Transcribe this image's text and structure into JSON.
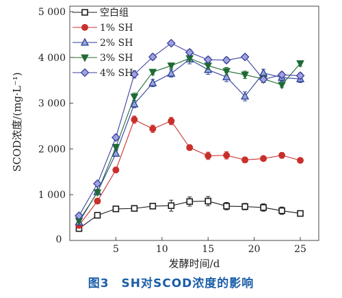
{
  "caption": "图3　SH对SCOD浓度的影响",
  "chart_data": {
    "type": "line",
    "xlabel": "发酵时间/d",
    "ylabel": "SCOD浓度/(mg·L⁻¹)",
    "xlim": [
      0,
      27
    ],
    "ylim": [
      0,
      5000
    ],
    "xticks": [
      5,
      10,
      15,
      20,
      25
    ],
    "x_tick_labels": [
      "5",
      "10",
      "15",
      "20",
      "25"
    ],
    "x_origin_label": "0",
    "yticks": [
      1000,
      2000,
      3000,
      4000,
      5000
    ],
    "y_tick_labels": [
      "1 000",
      "2 000",
      "3 000",
      "4 000",
      "5 000"
    ],
    "legend_position": "top-left",
    "x": [
      1,
      3,
      5,
      7,
      9,
      11,
      13,
      15,
      17,
      19,
      21,
      23,
      25
    ],
    "series": [
      {
        "name": "空白组",
        "color": "#1a1a1a",
        "marker": "square",
        "values": [
          260,
          550,
          690,
          700,
          750,
          760,
          850,
          860,
          750,
          740,
          720,
          650,
          590
        ],
        "errors": [
          50,
          40,
          40,
          40,
          50,
          120,
          100,
          100,
          80,
          70,
          80,
          80,
          40
        ]
      },
      {
        "name": "1% SH",
        "color": "#c8302c",
        "marker": "circle",
        "values": [
          330,
          860,
          1540,
          2640,
          2440,
          2610,
          2030,
          1850,
          1860,
          1760,
          1790,
          1860,
          1750
        ],
        "errors": [
          50,
          60,
          60,
          80,
          80,
          80,
          60,
          80,
          80,
          60,
          40,
          60,
          40
        ]
      },
      {
        "name": "2% SH",
        "color": "#2b3f97",
        "marker": "triangle-up",
        "values": [
          400,
          1060,
          1900,
          2980,
          3440,
          3650,
          3960,
          3730,
          3570,
          3150,
          3660,
          3560,
          3530
        ],
        "errors": [
          40,
          50,
          60,
          80,
          80,
          80,
          100,
          100,
          100,
          100,
          80,
          80,
          80
        ]
      },
      {
        "name": "3% SH",
        "color": "#1f6b33",
        "marker": "triangle-down",
        "values": [
          430,
          1050,
          2040,
          3140,
          3680,
          3820,
          3980,
          3820,
          3700,
          3620,
          3530,
          3400,
          3870
        ],
        "errors": [
          40,
          50,
          60,
          80,
          60,
          60,
          80,
          80,
          80,
          80,
          80,
          60,
          60
        ]
      },
      {
        "name": "4% SH",
        "color": "#3b3f9c",
        "marker": "diamond",
        "values": [
          540,
          1240,
          2250,
          3630,
          4010,
          4310,
          4110,
          3950,
          3940,
          4010,
          3520,
          3620,
          3600
        ],
        "errors": [
          40,
          50,
          60,
          80,
          60,
          50,
          60,
          60,
          60,
          50,
          60,
          60,
          60
        ]
      }
    ]
  }
}
